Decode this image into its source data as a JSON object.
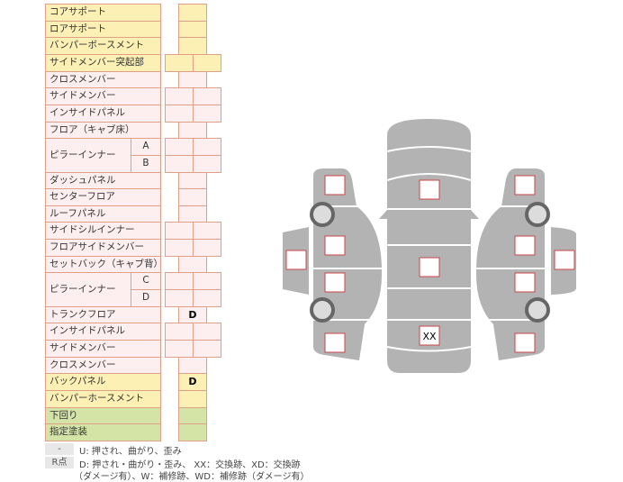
{
  "rows": [
    {
      "label": "コアサポート",
      "sub": "",
      "color": "y",
      "cells": 1,
      "marks": [
        ""
      ]
    },
    {
      "label": "ロアサポート",
      "sub": "",
      "color": "y",
      "cells": 1,
      "marks": [
        ""
      ]
    },
    {
      "label": "バンパーボースメント",
      "sub": "",
      "color": "y",
      "cells": 1,
      "marks": [
        ""
      ]
    },
    {
      "label": "サイドメンバー突起部",
      "sub": "",
      "color": "y",
      "cells": 2,
      "marks": [
        "",
        ""
      ]
    },
    {
      "label": "クロスメンバー",
      "sub": "",
      "color": "p",
      "cells": 1,
      "marks": [
        ""
      ]
    },
    {
      "label": "サイドメンバー",
      "sub": "",
      "color": "p",
      "cells": 2,
      "marks": [
        "",
        ""
      ]
    },
    {
      "label": "インサイドパネル",
      "sub": "",
      "color": "p",
      "cells": 2,
      "marks": [
        "",
        ""
      ]
    },
    {
      "label": "フロア（キャブ床）",
      "sub": "",
      "color": "p",
      "cells": 1,
      "marks": [
        ""
      ]
    },
    {
      "label": "ピラーインナー",
      "sub": "A",
      "color": "p",
      "cells": 2,
      "marks": [
        "",
        ""
      ],
      "group": "start"
    },
    {
      "label": "",
      "sub": "B",
      "color": "p",
      "cells": 2,
      "marks": [
        "",
        ""
      ],
      "group": "cont"
    },
    {
      "label": "ダッシュパネル",
      "sub": "",
      "color": "p",
      "cells": 1,
      "marks": [
        ""
      ]
    },
    {
      "label": "センターフロア",
      "sub": "",
      "color": "p",
      "cells": 1,
      "marks": [
        ""
      ]
    },
    {
      "label": "ルーフパネル",
      "sub": "",
      "color": "p",
      "cells": 1,
      "marks": [
        ""
      ]
    },
    {
      "label": "サイドシルインナー",
      "sub": "",
      "color": "p",
      "cells": 2,
      "marks": [
        "",
        ""
      ]
    },
    {
      "label": "フロアサイドメンバー",
      "sub": "",
      "color": "p",
      "cells": 2,
      "marks": [
        "",
        ""
      ]
    },
    {
      "label": "セットバック（キャブ背）",
      "sub": "",
      "color": "p",
      "cells": 1,
      "marks": [
        ""
      ]
    },
    {
      "label": "ピラーインナー",
      "sub": "C",
      "color": "p",
      "cells": 2,
      "marks": [
        "",
        ""
      ],
      "group": "start"
    },
    {
      "label": "",
      "sub": "D",
      "color": "p",
      "cells": 2,
      "marks": [
        "",
        ""
      ],
      "group": "cont"
    },
    {
      "label": "トランクフロア",
      "sub": "",
      "color": "p",
      "cells": 1,
      "marks": [
        "D"
      ]
    },
    {
      "label": "インサイドパネル",
      "sub": "",
      "color": "p",
      "cells": 2,
      "marks": [
        "",
        ""
      ]
    },
    {
      "label": "サイドメンバー",
      "sub": "",
      "color": "p",
      "cells": 2,
      "marks": [
        "",
        ""
      ]
    },
    {
      "label": "クロスメンバー",
      "sub": "",
      "color": "p",
      "cells": 1,
      "marks": [
        ""
      ]
    },
    {
      "label": "バックパネル",
      "sub": "",
      "color": "y",
      "cells": 1,
      "marks": [
        "D"
      ]
    },
    {
      "label": "バンパーホースメント",
      "sub": "",
      "color": "y",
      "cells": 1,
      "marks": [
        ""
      ]
    },
    {
      "label": "下回り",
      "sub": "",
      "color": "g",
      "cells": 1,
      "marks": [
        ""
      ]
    },
    {
      "label": "指定塗装",
      "sub": "",
      "color": "g",
      "cells": 1,
      "marks": [
        ""
      ]
    }
  ],
  "colors": {
    "y": "#fdf0b4",
    "p": "#fdeef0",
    "g": "#d4e4a6",
    "border": "#e0a088",
    "car": "#b3b3b3"
  },
  "diagram": {
    "roof_mark": "XX"
  },
  "legend": {
    "key1": "-",
    "text1": "U: 押され、曲がり、歪み",
    "key2": "R点",
    "text2": "D: 押され・曲がり・歪み、 XX：交換跡、XD：交換跡",
    "text3": "（ダメージ有）、W：補修跡、WD：補修跡（ダメージ有）"
  }
}
